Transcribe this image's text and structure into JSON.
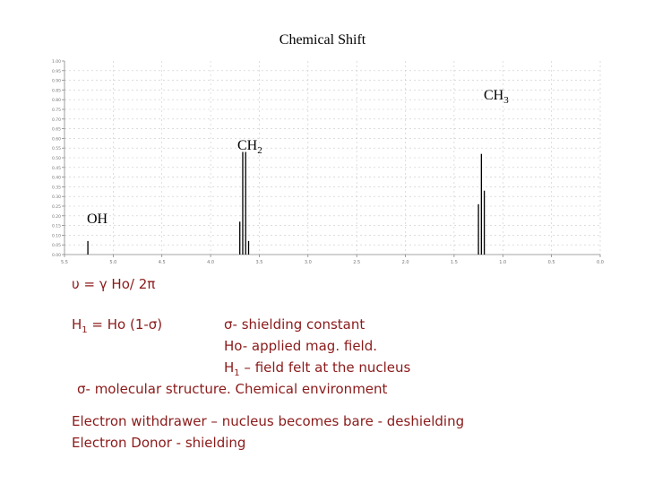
{
  "title": "Chemical Shift",
  "chart_data": {
    "type": "line",
    "title": "Chemical Shift",
    "x_axis": {
      "reversed": true,
      "xlim": [
        0.0,
        5.5
      ],
      "tick_labels": [
        "5.5",
        "5.0",
        "4.5",
        "4.0",
        "3.5",
        "3.0",
        "2.5",
        "2.0",
        "1.5",
        "1.0",
        "0.5",
        "0.0"
      ]
    },
    "y_axis": {
      "ylim": [
        0,
        1
      ],
      "tick_labels": [
        "1.00",
        "0.95",
        "0.90",
        "0.85",
        "0.80",
        "0.75",
        "0.70",
        "0.65",
        "0.60",
        "0.55",
        "0.50",
        "0.45",
        "0.40",
        "0.35",
        "0.30",
        "0.25",
        "0.20",
        "0.15",
        "0.10",
        "0.05",
        "0.00"
      ]
    },
    "grid": true,
    "series": [
      {
        "name": "OH",
        "peaks": [
          {
            "x": 5.26,
            "height": 0.07
          }
        ]
      },
      {
        "name": "CH2",
        "peaks": [
          {
            "x": 3.7,
            "height": 0.17
          },
          {
            "x": 3.67,
            "height": 0.53
          },
          {
            "x": 3.64,
            "height": 0.53
          },
          {
            "x": 3.61,
            "height": 0.07
          }
        ]
      },
      {
        "name": "CH3",
        "peaks": [
          {
            "x": 1.25,
            "height": 0.26
          },
          {
            "x": 1.22,
            "height": 0.52
          },
          {
            "x": 1.19,
            "height": 0.33
          }
        ]
      }
    ],
    "annotations": [
      {
        "id": "oh",
        "text": "OH",
        "sub": ""
      },
      {
        "id": "ch2",
        "text": "CH",
        "sub": "2"
      },
      {
        "id": "ch3",
        "text": "CH",
        "sub": "3"
      }
    ]
  },
  "notes": {
    "equation": "υ = γ Ho/ 2π",
    "h1_eq": {
      "main": "H",
      "sub": "1",
      "rest": " = Ho (1-σ)"
    },
    "sigma_def": "σ- shielding constant",
    "ho_def": "Ho- applied mag. field.",
    "h1_def": {
      "main": "H",
      "sub": "1",
      "rest": " – field felt at the nucleus"
    },
    "sigma_mol": "σ- molecular structure. Chemical environment",
    "withdrawer": "Electron withdrawer – nucleus becomes bare - deshielding",
    "donor": "Electron Donor - shielding"
  }
}
